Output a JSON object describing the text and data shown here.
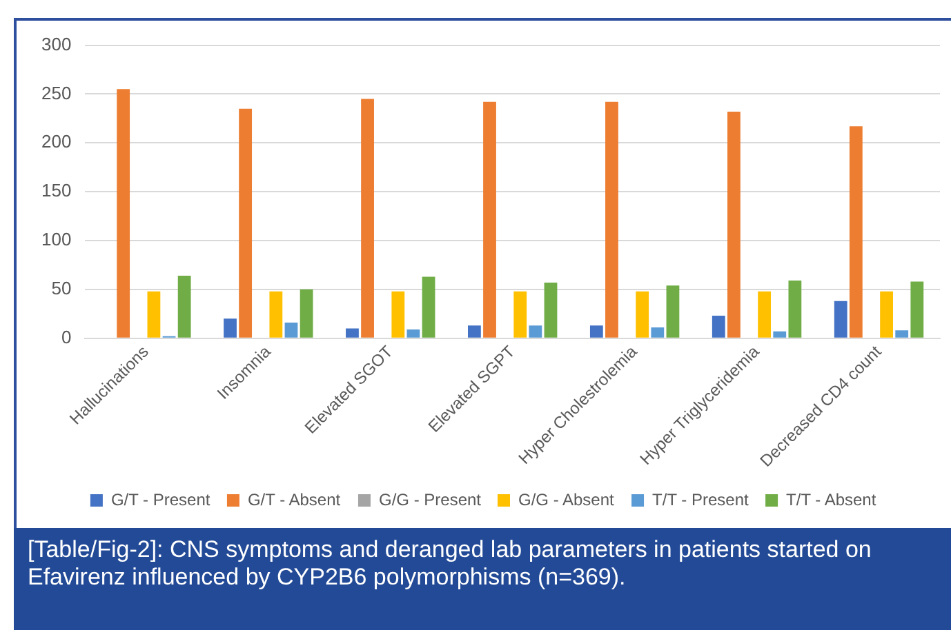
{
  "chart_data": {
    "type": "bar",
    "categories": [
      "Hallucinations",
      "Insomnia",
      "Elevated SGOT",
      "Elevated SGPT",
      "Hyper Cholestrolemia",
      "Hyper Triglyceridemia",
      "Decreased CD4 count"
    ],
    "series": [
      {
        "name": "G/T - Present",
        "color": "#4472c4",
        "values": [
          0,
          20,
          10,
          13,
          13,
          23,
          38
        ]
      },
      {
        "name": "G/T - Absent",
        "color": "#ed7d31",
        "values": [
          255,
          235,
          245,
          242,
          242,
          232,
          217
        ]
      },
      {
        "name": "G/G - Present",
        "color": "#a5a5a5",
        "values": [
          0,
          0,
          0,
          0,
          0,
          0,
          0
        ]
      },
      {
        "name": "G/G - Absent",
        "color": "#ffc000",
        "values": [
          48,
          48,
          48,
          48,
          48,
          48,
          48
        ]
      },
      {
        "name": "T/T - Present",
        "color": "#5b9bd5",
        "values": [
          2,
          16,
          9,
          13,
          11,
          7,
          8
        ]
      },
      {
        "name": "T/T - Absent",
        "color": "#70ad47",
        "values": [
          64,
          50,
          63,
          57,
          54,
          59,
          58
        ]
      }
    ],
    "ylim": [
      0,
      300
    ],
    "yticks": [
      0,
      50,
      100,
      150,
      200,
      250,
      300
    ],
    "grid": "y",
    "legend": "bottom",
    "annotations": [
      "[Table/Fig-2]: CNS symptoms and deranged lab parameters in patients started on Efavirenz influenced by CYP2B6 polymorphisms (n=369)."
    ]
  }
}
